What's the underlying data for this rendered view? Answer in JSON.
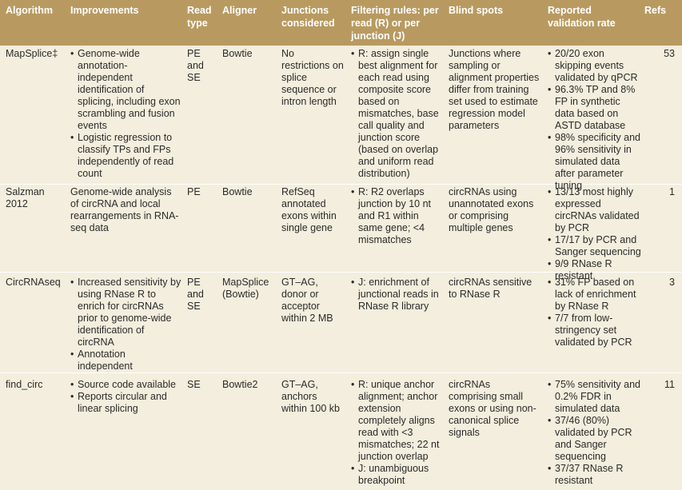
{
  "headers": {
    "algorithm": "Algorithm",
    "improvements": "Improvements",
    "read_type": "Read type",
    "aligner": "Aligner",
    "junctions": "Junctions considered",
    "filtering": "Filtering rules: per read (R) or per junction (J)",
    "blind_spots": "Blind spots",
    "validation": "Reported validation rate",
    "refs": "Refs"
  },
  "rows": [
    {
      "algorithm": "MapSplice‡",
      "improvements": [
        "Genome-wide annotation-independent identification of splicing, including exon scrambling and fusion events",
        "Logistic regression to classify TPs and FPs independently of read count"
      ],
      "read_type": "PE and SE",
      "aligner": "Bowtie",
      "junctions": "No restrictions on splice sequence or intron length",
      "filtering": [
        "R: assign single best alignment for each read using composite score based on mismatches, base call quality and junction score (based on overlap and uniform read distribution)"
      ],
      "blind_spots": "Junctions where sampling or alignment properties differ from training set used to estimate regression model parameters",
      "validation": [
        "20/20 exon skipping events validated by qPCR",
        "96.3% TP and 8% FP in synthetic data based on ASTD database",
        "98% specificity and 96% sensitivity in simulated data after parameter tuning"
      ],
      "refs": "53"
    },
    {
      "algorithm": "Salzman 2012",
      "improvements": "Genome-wide analysis of circRNA and local rearrangements in RNA-seq data",
      "read_type": "PE",
      "aligner": "Bowtie",
      "junctions": "RefSeq annotated exons within single gene",
      "filtering": [
        "R: R2 overlaps junction by 10 nt and R1 within same gene; <4 mismatches"
      ],
      "blind_spots": "circRNAs using unannotated exons or comprising multiple genes",
      "validation": [
        "13/13 most highly expressed circRNAs validated by PCR",
        "17/17 by PCR and Sanger sequencing",
        "9/9 RNase R resistant"
      ],
      "refs": "1"
    },
    {
      "algorithm": "CircRNAseq",
      "improvements": [
        "Increased sensitivity by using RNase R to enrich for circRNAs prior to genome-wide identification of circRNA",
        "Annotation independent"
      ],
      "read_type": "PE and SE",
      "aligner": "MapSplice (Bowtie)",
      "junctions": "GT–AG, donor or acceptor within 2 MB",
      "filtering": [
        "J: enrichment of junctional reads in RNase R library"
      ],
      "blind_spots": "circRNAs sensitive to RNase R",
      "validation": [
        "31% FP based on lack of enrichment by RNase R",
        "7/7 from low-stringency set validated by PCR"
      ],
      "refs": "3"
    },
    {
      "algorithm": "find_circ",
      "improvements": [
        "Source code available",
        "Reports circular and linear splicing"
      ],
      "read_type": "SE",
      "aligner": "Bowtie2",
      "junctions": "GT–AG, anchors within 100 kb",
      "filtering": [
        "R: unique anchor alignment; anchor extension completely aligns read with <3 mismatches; 22 nt junction overlap",
        "J: unambiguous breakpoint"
      ],
      "blind_spots": "circRNAs comprising small exons or using non-canonical splice signals",
      "validation": [
        "75% sensitivity and 0.2% FDR in simulated data",
        "37/46 (80%) validated by PCR and Sanger sequencing",
        "37/37 RNase R resistant"
      ],
      "refs": "11"
    }
  ]
}
